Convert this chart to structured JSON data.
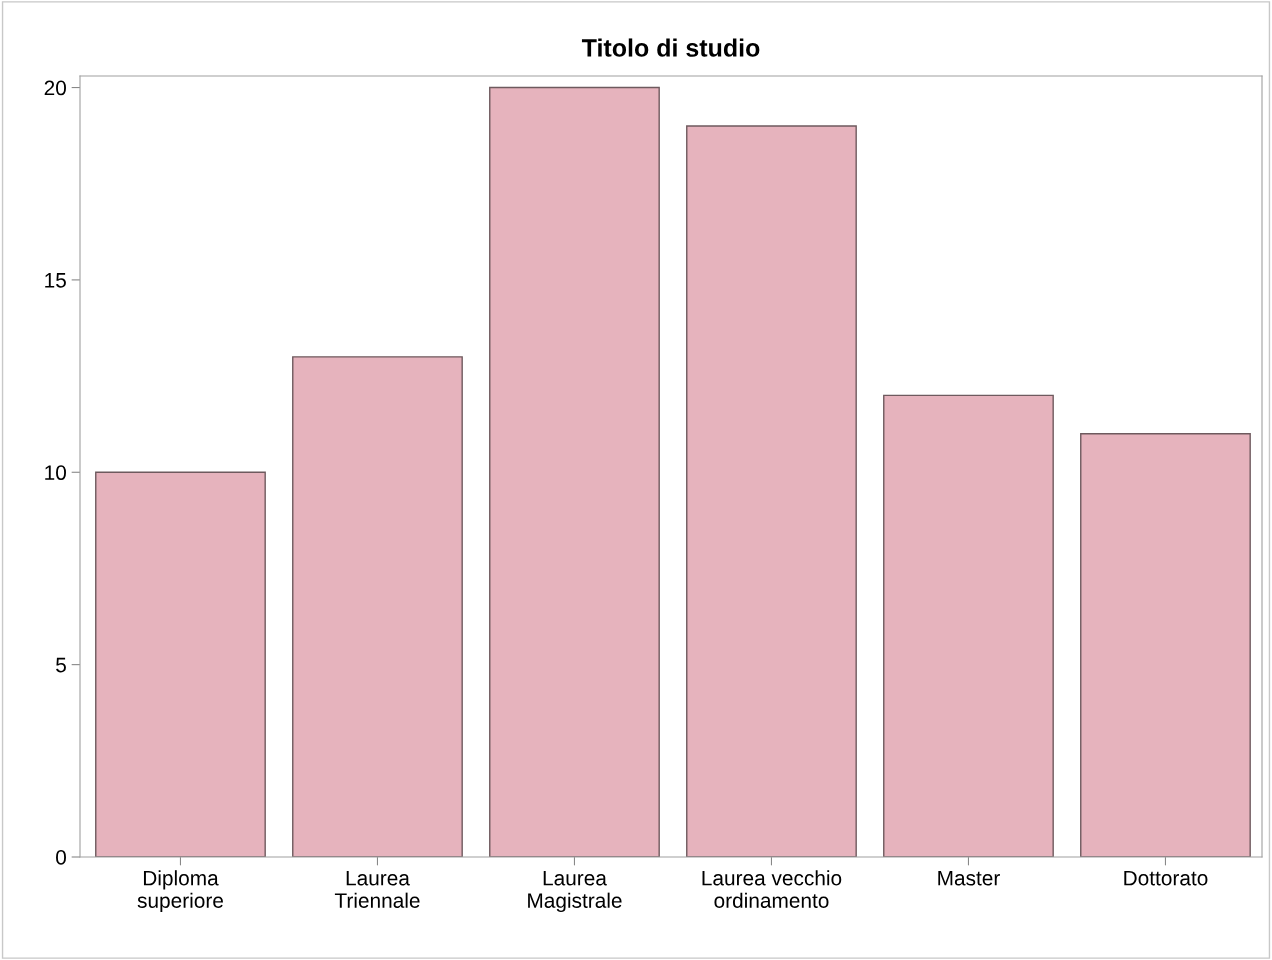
{
  "chart_data": {
    "type": "bar",
    "title": "Titolo di studio",
    "categories": [
      "Diploma\nsuperiore",
      "Laurea\nTriennale",
      "Laurea\nMagistrale",
      "Laurea vecchio\nordinamento",
      "Master",
      "Dottorato"
    ],
    "values": [
      10,
      13,
      20,
      19,
      12,
      11
    ],
    "color": "#e6b3bd",
    "ylim": [
      0,
      20.3
    ],
    "yticks": [
      0,
      5,
      10,
      15,
      20
    ],
    "grid": false
  }
}
